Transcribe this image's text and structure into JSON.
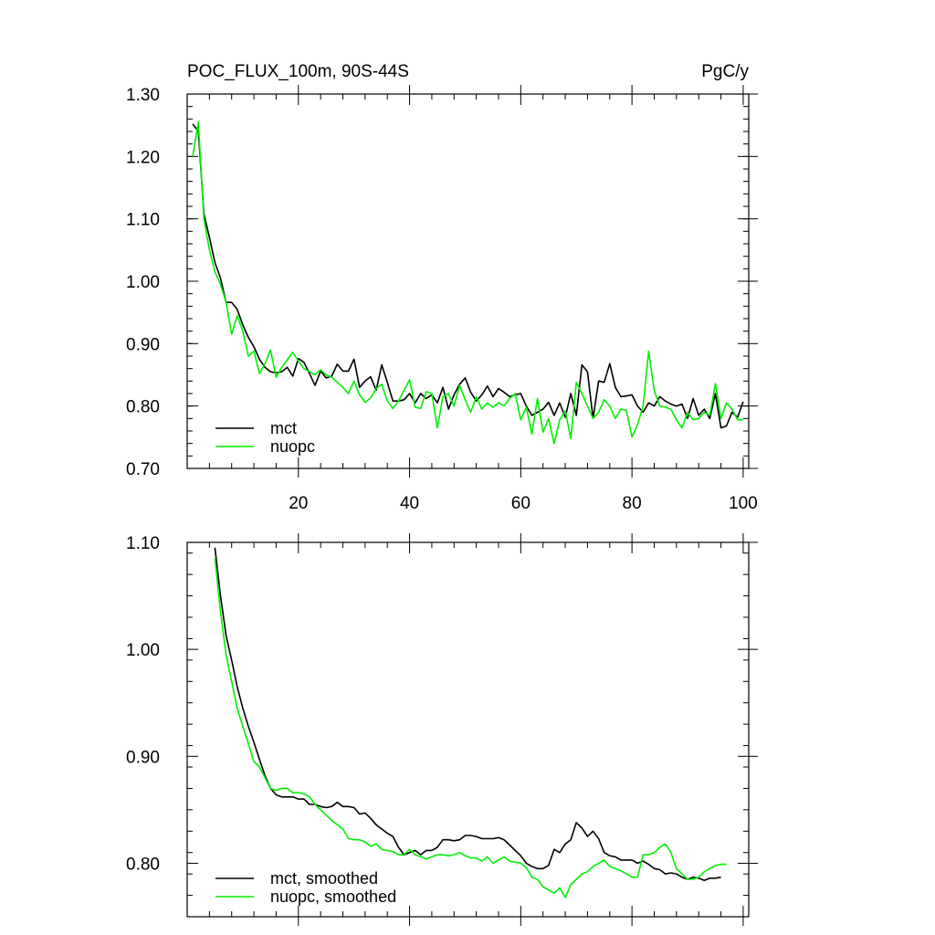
{
  "colors": {
    "mct": "#000000",
    "nuopc": "#00ee00"
  },
  "chart_data": [
    {
      "type": "line",
      "title": "POC_FLUX_100m, 90S-44S",
      "units": "PgC/y",
      "xlim": [
        0,
        101
      ],
      "ylim": [
        0.7,
        1.3
      ],
      "xticks": [
        20,
        40,
        60,
        80,
        100
      ],
      "yticks": [
        0.7,
        0.8,
        0.9,
        1.0,
        1.1,
        1.2,
        1.3
      ],
      "ytick_labels": [
        "0.70",
        "0.80",
        "0.90",
        "1.00",
        "1.10",
        "1.20",
        "1.30"
      ],
      "xtick_labels": [
        "20",
        "40",
        "60",
        "80",
        "100"
      ],
      "legend_position": "bottom-left",
      "series": [
        {
          "name": "mct",
          "color": "#000000",
          "x": [
            1,
            2,
            3,
            4,
            5,
            6,
            7,
            8,
            9,
            10,
            11,
            12,
            13,
            14,
            15,
            16,
            17,
            18,
            19,
            20,
            21,
            22,
            23,
            24,
            25,
            26,
            27,
            28,
            29,
            30,
            31,
            32,
            33,
            34,
            35,
            36,
            37,
            38,
            39,
            40,
            41,
            42,
            43,
            44,
            45,
            46,
            47,
            48,
            49,
            50,
            51,
            52,
            53,
            54,
            55,
            56,
            57,
            58,
            59,
            60,
            61,
            62,
            63,
            64,
            65,
            66,
            67,
            68,
            69,
            70,
            71,
            72,
            73,
            74,
            75,
            76,
            77,
            78,
            79,
            80,
            81,
            82,
            83,
            84,
            85,
            86,
            87,
            88,
            89,
            90,
            91,
            92,
            93,
            94,
            95,
            96,
            97,
            98,
            99,
            100
          ],
          "values": [
            1.252,
            1.24,
            1.108,
            1.07,
            1.03,
            1.005,
            0.966,
            0.966,
            0.955,
            0.93,
            0.91,
            0.895,
            0.875,
            0.862,
            0.855,
            0.853,
            0.855,
            0.862,
            0.848,
            0.876,
            0.87,
            0.852,
            0.833,
            0.856,
            0.845,
            0.848,
            0.867,
            0.856,
            0.856,
            0.875,
            0.83,
            0.84,
            0.847,
            0.825,
            0.866,
            0.838,
            0.808,
            0.808,
            0.81,
            0.82,
            0.805,
            0.82,
            0.812,
            0.818,
            0.805,
            0.83,
            0.795,
            0.818,
            0.835,
            0.845,
            0.822,
            0.808,
            0.818,
            0.832,
            0.815,
            0.828,
            0.822,
            0.815,
            0.818,
            0.82,
            0.8,
            0.785,
            0.79,
            0.795,
            0.806,
            0.785,
            0.805,
            0.782,
            0.82,
            0.785,
            0.866,
            0.855,
            0.78,
            0.84,
            0.838,
            0.868,
            0.83,
            0.815,
            0.816,
            0.818,
            0.8,
            0.79,
            0.805,
            0.8,
            0.815,
            0.808,
            0.803,
            0.8,
            0.803,
            0.78,
            0.812,
            0.785,
            0.795,
            0.78,
            0.82,
            0.765,
            0.768,
            0.79,
            0.782,
            0.807
          ]
        },
        {
          "name": "nuopc",
          "color": "#00ee00",
          "x": [
            1,
            2,
            3,
            4,
            5,
            6,
            7,
            8,
            9,
            10,
            11,
            12,
            13,
            14,
            15,
            16,
            17,
            18,
            19,
            20,
            21,
            22,
            23,
            24,
            25,
            26,
            27,
            28,
            29,
            30,
            31,
            32,
            33,
            34,
            35,
            36,
            37,
            38,
            39,
            40,
            41,
            42,
            43,
            44,
            45,
            46,
            47,
            48,
            49,
            50,
            51,
            52,
            53,
            54,
            55,
            56,
            57,
            58,
            59,
            60,
            61,
            62,
            63,
            64,
            65,
            66,
            67,
            68,
            69,
            70,
            71,
            72,
            73,
            74,
            75,
            76,
            77,
            78,
            79,
            80,
            81,
            82,
            83,
            84,
            85,
            86,
            87,
            88,
            89,
            90,
            91,
            92,
            93,
            94,
            95,
            96,
            97,
            98,
            99,
            100
          ],
          "values": [
            1.2,
            1.255,
            1.1,
            1.05,
            1.015,
            0.995,
            0.966,
            0.915,
            0.945,
            0.92,
            0.88,
            0.888,
            0.852,
            0.868,
            0.89,
            0.846,
            0.862,
            0.874,
            0.886,
            0.872,
            0.86,
            0.855,
            0.85,
            0.858,
            0.85,
            0.846,
            0.838,
            0.83,
            0.82,
            0.84,
            0.818,
            0.806,
            0.813,
            0.828,
            0.835,
            0.808,
            0.796,
            0.808,
            0.825,
            0.842,
            0.798,
            0.796,
            0.823,
            0.82,
            0.765,
            0.815,
            0.82,
            0.8,
            0.833,
            0.81,
            0.79,
            0.815,
            0.795,
            0.805,
            0.798,
            0.805,
            0.8,
            0.812,
            0.82,
            0.778,
            0.798,
            0.755,
            0.812,
            0.758,
            0.78,
            0.74,
            0.778,
            0.792,
            0.748,
            0.838,
            0.82,
            0.8,
            0.78,
            0.79,
            0.81,
            0.8,
            0.78,
            0.795,
            0.793,
            0.75,
            0.77,
            0.8,
            0.888,
            0.825,
            0.8,
            0.798,
            0.795,
            0.778,
            0.765,
            0.79,
            0.778,
            0.78,
            0.79,
            0.785,
            0.836,
            0.78,
            0.805,
            0.795,
            0.778,
            0.778
          ]
        }
      ]
    },
    {
      "type": "line",
      "xlim": [
        0,
        101
      ],
      "ylim": [
        0.75,
        1.1
      ],
      "xticks": [
        20,
        40,
        60,
        80,
        100
      ],
      "yticks": [
        0.8,
        0.9,
        1.0,
        1.1
      ],
      "ytick_labels": [
        "0.80",
        "0.90",
        "1.00",
        "1.10"
      ],
      "legend_position": "bottom-left",
      "series": [
        {
          "name": "mct, smoothed",
          "color": "#000000",
          "x": [
            5,
            6,
            7,
            8,
            9,
            10,
            11,
            12,
            13,
            14,
            15,
            16,
            17,
            18,
            19,
            20,
            21,
            22,
            23,
            24,
            25,
            26,
            27,
            28,
            29,
            30,
            31,
            32,
            33,
            34,
            35,
            36,
            37,
            38,
            39,
            40,
            41,
            42,
            43,
            44,
            45,
            46,
            47,
            48,
            49,
            50,
            51,
            52,
            53,
            54,
            55,
            56,
            57,
            58,
            59,
            60,
            61,
            62,
            63,
            64,
            65,
            66,
            67,
            68,
            69,
            70,
            71,
            72,
            73,
            74,
            75,
            76,
            77,
            78,
            79,
            80,
            81,
            82,
            83,
            84,
            85,
            86,
            87,
            88,
            89,
            90,
            91,
            92,
            93,
            94,
            95,
            96
          ],
          "values": [
            1.095,
            1.05,
            1.013,
            0.99,
            0.965,
            0.945,
            0.928,
            0.913,
            0.897,
            0.882,
            0.87,
            0.864,
            0.862,
            0.862,
            0.862,
            0.86,
            0.86,
            0.855,
            0.855,
            0.853,
            0.852,
            0.853,
            0.857,
            0.853,
            0.853,
            0.852,
            0.846,
            0.847,
            0.842,
            0.836,
            0.832,
            0.828,
            0.825,
            0.815,
            0.808,
            0.81,
            0.812,
            0.808,
            0.812,
            0.812,
            0.815,
            0.822,
            0.822,
            0.821,
            0.822,
            0.826,
            0.826,
            0.825,
            0.823,
            0.823,
            0.823,
            0.824,
            0.822,
            0.817,
            0.812,
            0.807,
            0.8,
            0.797,
            0.795,
            0.795,
            0.798,
            0.813,
            0.81,
            0.818,
            0.822,
            0.838,
            0.833,
            0.825,
            0.83,
            0.823,
            0.81,
            0.807,
            0.806,
            0.803,
            0.803,
            0.803,
            0.8,
            0.802,
            0.799,
            0.795,
            0.794,
            0.79,
            0.791,
            0.79,
            0.787,
            0.785,
            0.787,
            0.786,
            0.784,
            0.786,
            0.786,
            0.787
          ]
        },
        {
          "name": "nuopc, smoothed",
          "color": "#00ee00",
          "x": [
            5,
            6,
            7,
            8,
            9,
            10,
            11,
            12,
            13,
            14,
            15,
            16,
            17,
            18,
            19,
            20,
            21,
            22,
            23,
            24,
            25,
            26,
            27,
            28,
            29,
            30,
            31,
            32,
            33,
            34,
            35,
            36,
            37,
            38,
            39,
            40,
            41,
            42,
            43,
            44,
            45,
            46,
            47,
            48,
            49,
            50,
            51,
            52,
            53,
            54,
            55,
            56,
            57,
            58,
            59,
            60,
            61,
            62,
            63,
            64,
            65,
            66,
            67,
            68,
            69,
            70,
            71,
            72,
            73,
            74,
            75,
            76,
            77,
            78,
            79,
            80,
            81,
            82,
            83,
            84,
            85,
            86,
            87,
            88,
            89,
            90,
            91,
            92,
            93,
            94,
            95,
            96,
            97
          ],
          "values": [
            1.085,
            1.035,
            0.995,
            0.97,
            0.945,
            0.928,
            0.912,
            0.895,
            0.89,
            0.88,
            0.87,
            0.868,
            0.87,
            0.87,
            0.866,
            0.866,
            0.865,
            0.862,
            0.855,
            0.85,
            0.845,
            0.84,
            0.836,
            0.832,
            0.823,
            0.822,
            0.822,
            0.82,
            0.816,
            0.818,
            0.813,
            0.812,
            0.811,
            0.808,
            0.808,
            0.813,
            0.808,
            0.806,
            0.804,
            0.806,
            0.808,
            0.808,
            0.807,
            0.808,
            0.81,
            0.807,
            0.805,
            0.805,
            0.802,
            0.806,
            0.8,
            0.803,
            0.806,
            0.802,
            0.801,
            0.8,
            0.796,
            0.787,
            0.785,
            0.778,
            0.775,
            0.772,
            0.777,
            0.768,
            0.78,
            0.785,
            0.79,
            0.792,
            0.797,
            0.8,
            0.803,
            0.797,
            0.795,
            0.793,
            0.79,
            0.787,
            0.787,
            0.808,
            0.808,
            0.81,
            0.815,
            0.818,
            0.81,
            0.795,
            0.79,
            0.785,
            0.785,
            0.787,
            0.792,
            0.795,
            0.798,
            0.799,
            0.799
          ]
        }
      ]
    }
  ]
}
